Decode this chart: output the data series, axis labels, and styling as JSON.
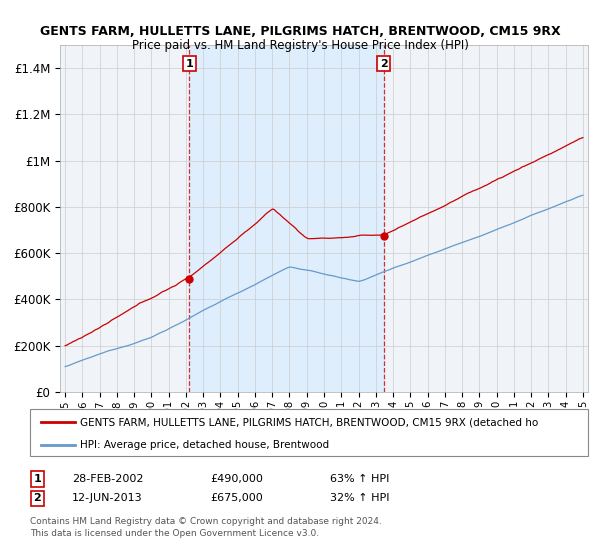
{
  "title": "GENTS FARM, HULLETTS LANE, PILGRIMS HATCH, BRENTWOOD, CM15 9RX",
  "subtitle": "Price paid vs. HM Land Registry's House Price Index (HPI)",
  "ylim": [
    0,
    1500000
  ],
  "yticks": [
    0,
    200000,
    400000,
    600000,
    800000,
    1000000,
    1200000,
    1400000
  ],
  "ytick_labels": [
    "£0",
    "£200K",
    "£400K",
    "£600K",
    "£800K",
    "£1M",
    "£1.2M",
    "£1.4M"
  ],
  "sale1_year": 2002.15,
  "sale1_price": 490000,
  "sale2_year": 2013.45,
  "sale2_price": 675000,
  "sale1_date_str": "28-FEB-2002",
  "sale1_hpi_pct": "63% ↑ HPI",
  "sale2_date_str": "12-JUN-2013",
  "sale2_hpi_pct": "32% ↑ HPI",
  "red_color": "#cc0000",
  "blue_color": "#6699cc",
  "shade_color": "#ddeeff",
  "bg_color": "#f0f4f8",
  "grid_color": "#cccccc",
  "legend_label_red": "GENTS FARM, HULLETTS LANE, PILGRIMS HATCH, BRENTWOOD, CM15 9RX (detached ho",
  "legend_label_blue": "HPI: Average price, detached house, Brentwood",
  "footer1": "Contains HM Land Registry data © Crown copyright and database right 2024.",
  "footer2": "This data is licensed under the Open Government Licence v3.0."
}
